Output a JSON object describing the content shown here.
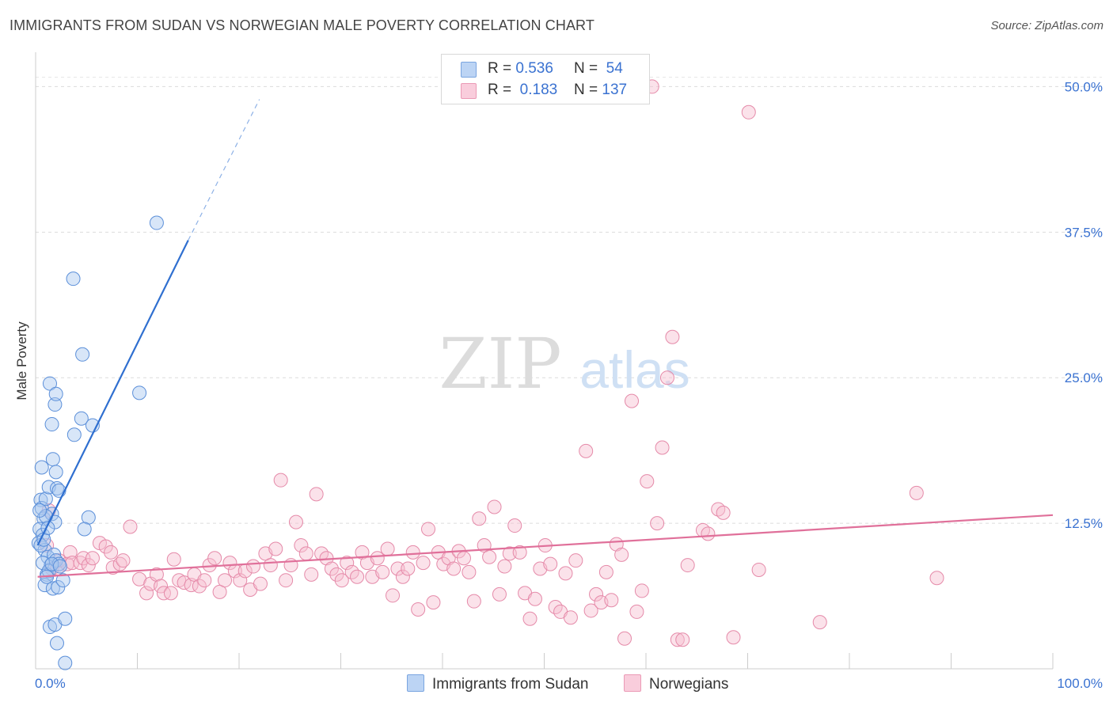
{
  "header": {
    "title": "IMMIGRANTS FROM SUDAN VS NORWEGIAN MALE POVERTY CORRELATION CHART",
    "source": "Source: ZipAtlas.com"
  },
  "watermark": {
    "zip": "ZIP",
    "atlas": "atlas"
  },
  "legend": {
    "sudan": {
      "r_label": "R =",
      "r_value": "0.536",
      "n_label": "N =",
      "n_value": "54",
      "color": "#a9c8f0",
      "edge": "#5b8fd9"
    },
    "norwegians": {
      "r_label": "R =",
      "r_value": "0.183",
      "n_label": "N =",
      "n_value": "137",
      "color": "#f7bfd1",
      "edge": "#e58aa9"
    }
  },
  "bottom_legend": {
    "sudan_label": "Immigrants from Sudan",
    "norwegians_label": "Norwegians"
  },
  "chart_data": {
    "type": "scatter",
    "title": "IMMIGRANTS FROM SUDAN VS NORWEGIAN MALE POVERTY CORRELATION CHART",
    "xlabel": "",
    "ylabel": "Male Poverty",
    "xlim": [
      0,
      100
    ],
    "ylim": [
      0,
      52
    ],
    "x_tick_labels": [
      "0.0%",
      "100.0%"
    ],
    "y_ticks": [
      12.5,
      25.0,
      37.5,
      50.0
    ],
    "y_tick_labels": [
      "12.5%",
      "25.0%",
      "37.5%",
      "50.0%"
    ],
    "grid": true,
    "legend_position": "top-center",
    "series": [
      {
        "name": "Immigrants from Sudan",
        "color": "#5b8fd9",
        "trend": {
          "x": [
            0.2,
            15.0
          ],
          "y": [
            10.6,
            36.8
          ],
          "dashed_to": [
            22.0,
            48.9
          ]
        },
        "points": [
          [
            0.5,
            14.5
          ],
          [
            0.6,
            13.8
          ],
          [
            0.8,
            12.9
          ],
          [
            0.4,
            12.0
          ],
          [
            0.7,
            11.5
          ],
          [
            0.3,
            10.8
          ],
          [
            0.9,
            10.2
          ],
          [
            0.6,
            17.3
          ],
          [
            1.0,
            14.6
          ],
          [
            1.3,
            15.6
          ],
          [
            1.6,
            13.3
          ],
          [
            1.9,
            12.6
          ],
          [
            1.2,
            9.6
          ],
          [
            1.5,
            8.9
          ],
          [
            1.8,
            9.8
          ],
          [
            1.1,
            8.1
          ],
          [
            0.9,
            7.2
          ],
          [
            1.7,
            6.9
          ],
          [
            2.2,
            7.0
          ],
          [
            2.7,
            7.6
          ],
          [
            2.0,
            9.3
          ],
          [
            2.3,
            9.0
          ],
          [
            1.4,
            24.5
          ],
          [
            1.9,
            22.7
          ],
          [
            2.0,
            23.6
          ],
          [
            1.6,
            21.0
          ],
          [
            1.7,
            18.0
          ],
          [
            2.0,
            16.9
          ],
          [
            2.1,
            15.5
          ],
          [
            2.3,
            15.3
          ],
          [
            1.4,
            3.6
          ],
          [
            1.9,
            3.8
          ],
          [
            2.1,
            2.2
          ],
          [
            2.9,
            4.3
          ],
          [
            2.9,
            0.5
          ],
          [
            3.7,
            33.5
          ],
          [
            4.6,
            27.0
          ],
          [
            3.8,
            20.1
          ],
          [
            4.5,
            21.5
          ],
          [
            5.6,
            20.9
          ],
          [
            5.2,
            13.0
          ],
          [
            4.8,
            12.0
          ],
          [
            10.2,
            23.7
          ],
          [
            11.9,
            38.3
          ],
          [
            0.5,
            10.6
          ],
          [
            0.8,
            11.1
          ],
          [
            1.0,
            13.1
          ],
          [
            1.2,
            12.1
          ],
          [
            0.7,
            9.1
          ],
          [
            1.3,
            8.4
          ],
          [
            1.6,
            9.0
          ],
          [
            0.4,
            13.6
          ],
          [
            2.4,
            8.8
          ],
          [
            1.1,
            7.9
          ]
        ]
      },
      {
        "name": "Norwegians",
        "color": "#e58aa9",
        "trend": {
          "x": [
            0.2,
            100.0
          ],
          "y": [
            7.9,
            13.2
          ]
        },
        "points": [
          [
            1.1,
            10.6
          ],
          [
            1.3,
            13.6
          ],
          [
            1.6,
            8.6
          ],
          [
            2.1,
            8.6
          ],
          [
            2.3,
            9.3
          ],
          [
            3.1,
            9.0
          ],
          [
            3.4,
            10.0
          ],
          [
            3.6,
            9.1
          ],
          [
            4.4,
            9.1
          ],
          [
            4.7,
            9.5
          ],
          [
            5.2,
            8.9
          ],
          [
            5.6,
            9.5
          ],
          [
            6.3,
            10.8
          ],
          [
            6.9,
            10.5
          ],
          [
            7.4,
            10.0
          ],
          [
            7.6,
            8.7
          ],
          [
            8.3,
            9.0
          ],
          [
            8.6,
            9.3
          ],
          [
            9.3,
            12.2
          ],
          [
            10.2,
            7.7
          ],
          [
            10.9,
            6.5
          ],
          [
            11.3,
            7.3
          ],
          [
            11.9,
            8.1
          ],
          [
            12.3,
            7.1
          ],
          [
            12.6,
            6.5
          ],
          [
            13.3,
            6.5
          ],
          [
            13.6,
            9.4
          ],
          [
            14.1,
            7.6
          ],
          [
            14.6,
            7.4
          ],
          [
            15.3,
            7.2
          ],
          [
            15.6,
            8.1
          ],
          [
            16.1,
            7.1
          ],
          [
            16.6,
            7.6
          ],
          [
            17.1,
            8.9
          ],
          [
            17.6,
            9.5
          ],
          [
            18.1,
            6.6
          ],
          [
            18.6,
            7.6
          ],
          [
            19.1,
            9.1
          ],
          [
            19.6,
            8.4
          ],
          [
            20.1,
            7.6
          ],
          [
            20.6,
            8.4
          ],
          [
            21.1,
            6.8
          ],
          [
            21.4,
            8.8
          ],
          [
            22.1,
            7.3
          ],
          [
            22.6,
            9.9
          ],
          [
            23.1,
            8.9
          ],
          [
            23.6,
            10.3
          ],
          [
            24.1,
            16.2
          ],
          [
            24.6,
            7.6
          ],
          [
            25.1,
            8.9
          ],
          [
            25.6,
            12.6
          ],
          [
            26.1,
            10.6
          ],
          [
            26.6,
            9.9
          ],
          [
            27.1,
            8.1
          ],
          [
            27.6,
            15.0
          ],
          [
            28.1,
            9.9
          ],
          [
            28.6,
            9.5
          ],
          [
            29.1,
            8.6
          ],
          [
            29.6,
            8.1
          ],
          [
            30.1,
            7.6
          ],
          [
            30.6,
            9.1
          ],
          [
            31.1,
            8.3
          ],
          [
            31.6,
            7.9
          ],
          [
            32.1,
            10.0
          ],
          [
            32.6,
            9.1
          ],
          [
            33.1,
            7.9
          ],
          [
            33.6,
            9.5
          ],
          [
            34.1,
            8.3
          ],
          [
            34.6,
            10.3
          ],
          [
            35.1,
            6.3
          ],
          [
            35.6,
            8.6
          ],
          [
            36.1,
            7.9
          ],
          [
            36.6,
            8.6
          ],
          [
            37.1,
            10.0
          ],
          [
            37.6,
            5.1
          ],
          [
            38.1,
            9.1
          ],
          [
            38.6,
            12.0
          ],
          [
            39.1,
            5.7
          ],
          [
            39.6,
            10.0
          ],
          [
            40.1,
            9.0
          ],
          [
            40.6,
            9.5
          ],
          [
            41.1,
            8.6
          ],
          [
            41.6,
            10.1
          ],
          [
            42.1,
            9.5
          ],
          [
            42.6,
            8.3
          ],
          [
            43.1,
            5.8
          ],
          [
            43.6,
            12.9
          ],
          [
            44.1,
            10.6
          ],
          [
            44.6,
            9.6
          ],
          [
            45.1,
            13.9
          ],
          [
            45.6,
            6.4
          ],
          [
            46.1,
            8.8
          ],
          [
            46.6,
            9.9
          ],
          [
            47.1,
            12.3
          ],
          [
            47.6,
            10.0
          ],
          [
            48.1,
            6.5
          ],
          [
            48.6,
            4.3
          ],
          [
            49.1,
            6.0
          ],
          [
            49.6,
            8.6
          ],
          [
            50.1,
            10.6
          ],
          [
            50.6,
            9.0
          ],
          [
            51.1,
            5.3
          ],
          [
            51.6,
            4.9
          ],
          [
            52.1,
            8.2
          ],
          [
            52.6,
            4.4
          ],
          [
            53.1,
            9.3
          ],
          [
            54.1,
            18.7
          ],
          [
            54.6,
            5.0
          ],
          [
            55.1,
            6.4
          ],
          [
            55.6,
            5.7
          ],
          [
            56.1,
            8.3
          ],
          [
            56.6,
            5.9
          ],
          [
            57.1,
            10.7
          ],
          [
            57.6,
            9.8
          ],
          [
            57.9,
            2.6
          ],
          [
            58.6,
            23.0
          ],
          [
            59.1,
            4.9
          ],
          [
            59.6,
            6.7
          ],
          [
            60.1,
            16.1
          ],
          [
            60.6,
            50.0
          ],
          [
            61.1,
            12.5
          ],
          [
            61.6,
            19.0
          ],
          [
            62.1,
            25.0
          ],
          [
            62.6,
            28.5
          ],
          [
            63.1,
            2.5
          ],
          [
            63.6,
            2.5
          ],
          [
            64.1,
            8.9
          ],
          [
            65.6,
            11.9
          ],
          [
            66.1,
            11.6
          ],
          [
            67.1,
            13.7
          ],
          [
            67.6,
            13.4
          ],
          [
            68.6,
            2.7
          ],
          [
            70.1,
            47.8
          ],
          [
            71.1,
            8.5
          ],
          [
            77.1,
            4.0
          ],
          [
            86.6,
            15.1
          ],
          [
            88.6,
            7.8
          ]
        ]
      }
    ]
  }
}
